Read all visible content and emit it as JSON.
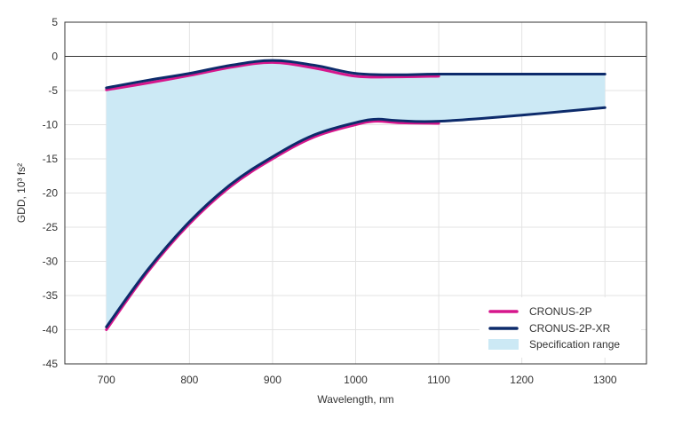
{
  "chart_data": {
    "type": "line",
    "xlabel": "Wavelength, nm",
    "ylabel": "GDD, 10³ fs²",
    "xlim": [
      650,
      1350
    ],
    "ylim": [
      -45,
      5
    ],
    "xticks": [
      700,
      800,
      900,
      1000,
      1100,
      1200,
      1300
    ],
    "yticks": [
      5,
      0,
      -5,
      -10,
      -15,
      -20,
      -25,
      -30,
      -35,
      -40,
      -45
    ],
    "grid": true,
    "legend_position": "bottom-right",
    "colors": {
      "cronus_2p": "#d6168c",
      "cronus_2p_xr": "#0d2b6b",
      "spec_range": "#cce9f5",
      "grid": "#e3e3e3",
      "zero_line": "#333333"
    },
    "series": [
      {
        "name": "CRONUS-2P",
        "upper": {
          "x": [
            700,
            750,
            800,
            850,
            900,
            950,
            1000,
            1050,
            1100
          ],
          "y": [
            -4.9,
            -3.9,
            -2.8,
            -1.6,
            -0.9,
            -1.7,
            -2.9,
            -3.0,
            -2.9
          ]
        },
        "lower": {
          "x": [
            700,
            750,
            800,
            850,
            900,
            950,
            1000,
            1025,
            1050,
            1100
          ],
          "y": [
            -40.0,
            -31.5,
            -24.5,
            -19.0,
            -15.0,
            -11.8,
            -10.0,
            -9.5,
            -9.7,
            -9.8
          ]
        }
      },
      {
        "name": "CRONUS-2P-XR",
        "upper": {
          "x": [
            700,
            750,
            800,
            850,
            900,
            950,
            1000,
            1050,
            1100,
            1200,
            1300
          ],
          "y": [
            -4.6,
            -3.5,
            -2.5,
            -1.3,
            -0.6,
            -1.3,
            -2.5,
            -2.7,
            -2.6,
            -2.6,
            -2.6
          ]
        },
        "lower": {
          "x": [
            700,
            750,
            800,
            850,
            900,
            950,
            1000,
            1025,
            1050,
            1100,
            1200,
            1300
          ],
          "y": [
            -39.6,
            -31.2,
            -24.2,
            -18.7,
            -14.7,
            -11.5,
            -9.7,
            -9.2,
            -9.4,
            -9.5,
            -8.6,
            -7.5
          ]
        }
      }
    ],
    "specification_range": {
      "name": "Specification range",
      "upper": {
        "x": [
          700,
          750,
          800,
          850,
          900,
          950,
          1000,
          1050,
          1100,
          1200,
          1300
        ],
        "y": [
          -4.6,
          -3.5,
          -2.5,
          -1.3,
          -0.6,
          -1.3,
          -2.5,
          -2.7,
          -2.6,
          -2.6,
          -2.6
        ]
      },
      "lower": {
        "x": [
          700,
          750,
          800,
          850,
          900,
          950,
          1000,
          1025,
          1050,
          1100,
          1200,
          1300
        ],
        "y": [
          -39.6,
          -31.2,
          -24.2,
          -18.7,
          -14.7,
          -11.5,
          -9.7,
          -9.2,
          -9.4,
          -9.5,
          -8.6,
          -7.5
        ]
      }
    }
  }
}
